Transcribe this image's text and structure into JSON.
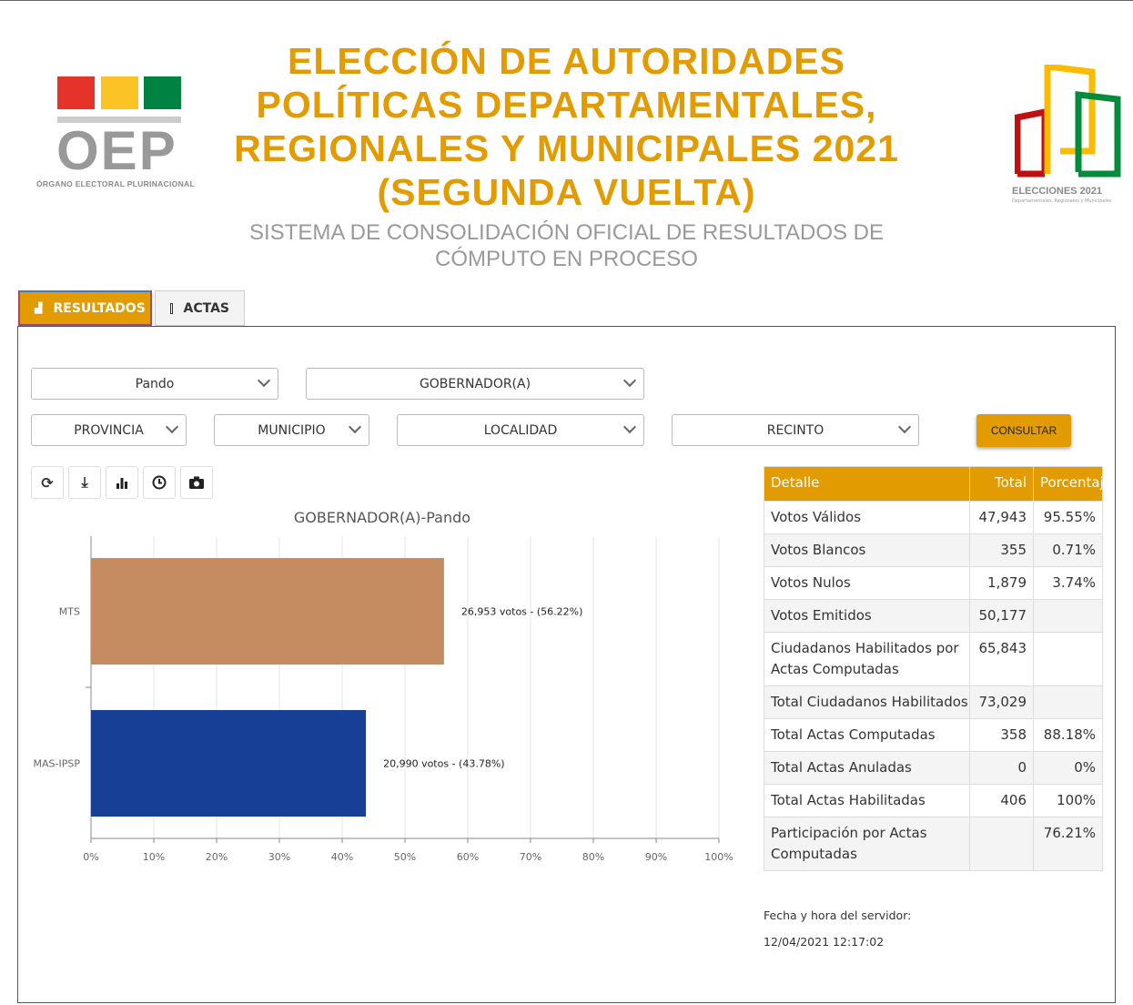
{
  "header": {
    "title": "ELECCIÓN DE AUTORIDADES POLÍTICAS DEPARTAMENTALES, REGIONALES Y MUNICIPALES 2021 (SEGUNDA VUELTA)",
    "subtitle": "SISTEMA DE CONSOLIDACIÓN OFICIAL DE RESULTADOS DE CÓMPUTO EN PROCESO",
    "logo_left": "OEP",
    "logo_left_sub": "ÓRGANO ELECTORAL PLURINACIONAL",
    "logo_right": "ELECCIONES 2021",
    "logo_right_sub": "Departamentales, Regionales y Municipales"
  },
  "colors": {
    "accent": "#e29b00",
    "mts": "#c48c60",
    "mas": "#173f96"
  },
  "tabs": [
    {
      "label": "RESULTADOS",
      "icon": "area-chart-icon",
      "active": true
    },
    {
      "label": "ACTAS",
      "icon": "file-icon",
      "active": false
    }
  ],
  "filters": {
    "departamento": "Pando",
    "cargo": "GOBERNADOR(A)",
    "provincia": "PROVINCIA",
    "municipio": "MUNICIPIO",
    "localidad": "LOCALIDAD",
    "recinto": "RECINTO",
    "consultar": "CONSULTAR"
  },
  "toolbar": [
    "refresh-icon",
    "download-icon",
    "bar-chart-icon",
    "clock-icon",
    "camera-icon"
  ],
  "chart_data": {
    "type": "bar",
    "orientation": "horizontal",
    "title": "GOBERNADOR(A)-Pando",
    "categories": [
      "MTS",
      "MAS-IPSP"
    ],
    "values": [
      56.22,
      43.78
    ],
    "labels": [
      "26,953 votos - (56.22%)",
      "20,990 votos - (43.78%)"
    ],
    "xlim": [
      0,
      100
    ],
    "xticks": [
      "0%",
      "10%",
      "20%",
      "30%",
      "40%",
      "50%",
      "60%",
      "70%",
      "80%",
      "90%",
      "100%"
    ],
    "grid": true
  },
  "table": {
    "headers": [
      "Detalle",
      "Total",
      "Porcentaje"
    ],
    "rows": [
      [
        "Votos Válidos",
        "47,943",
        "95.55%"
      ],
      [
        "Votos Blancos",
        "355",
        "0.71%"
      ],
      [
        "Votos Nulos",
        "1,879",
        "3.74%"
      ],
      [
        "Votos Emitidos",
        "50,177",
        ""
      ],
      [
        "Ciudadanos Habilitados por Actas Computadas",
        "65,843",
        ""
      ],
      [
        "Total Ciudadanos Habilitados",
        "73,029",
        ""
      ],
      [
        "Total Actas Computadas",
        "358",
        "88.18%"
      ],
      [
        "Total Actas Anuladas",
        "0",
        "0%"
      ],
      [
        "Total Actas Habilitadas",
        "406",
        "100%"
      ],
      [
        "Participación por Actas Computadas",
        "",
        "76.21%"
      ]
    ]
  },
  "server": {
    "label": "Fecha y hora del servidor:",
    "datetime": "12/04/2021 12:17:02"
  }
}
